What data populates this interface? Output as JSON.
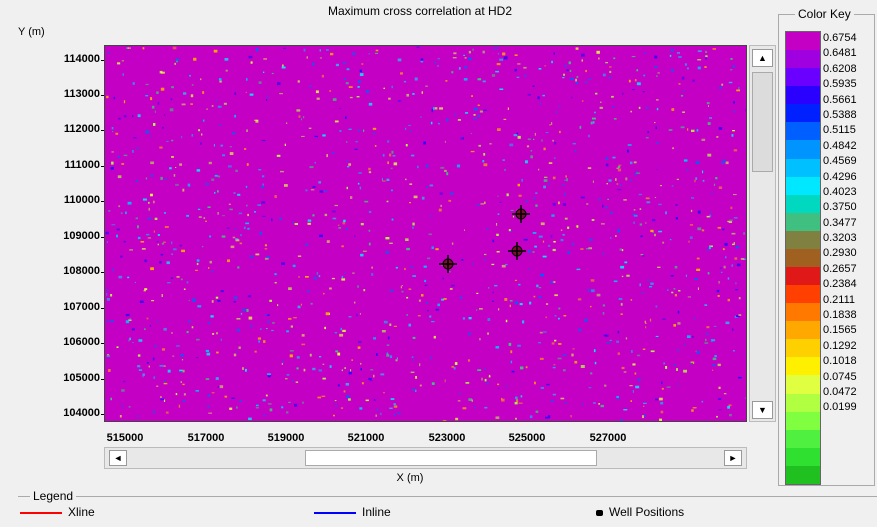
{
  "title": "Maximum cross correlation at HD2",
  "y_axis_label": "Y (m)",
  "x_axis_label": "X (m)",
  "y_ticks": [
    "114000",
    "113000",
    "112000",
    "111000",
    "110000",
    "109000",
    "108000",
    "107000",
    "106000",
    "105000",
    "104000"
  ],
  "x_ticks": [
    "515000",
    "517000",
    "519000",
    "521000",
    "523000",
    "525000",
    "527000"
  ],
  "color_key": {
    "title": "Color Key",
    "values": [
      "0.6754",
      "0.6481",
      "0.6208",
      "0.5935",
      "0.5661",
      "0.5388",
      "0.5115",
      "0.4842",
      "0.4569",
      "0.4296",
      "0.4023",
      "0.3750",
      "0.3477",
      "0.3203",
      "0.2930",
      "0.2657",
      "0.2384",
      "0.2111",
      "0.1838",
      "0.1565",
      "0.1292",
      "0.1018",
      "0.0745",
      "0.0472",
      "0.0199"
    ],
    "colors": [
      "#c400c4",
      "#a000e0",
      "#6a00ff",
      "#2a00ff",
      "#0020ff",
      "#0060ff",
      "#0094ff",
      "#00c0ff",
      "#00e8ff",
      "#00d8c0",
      "#40c080",
      "#808040",
      "#a06020",
      "#e01818",
      "#ff4000",
      "#ff7800",
      "#ffa800",
      "#ffd000",
      "#fff000",
      "#e0ff40",
      "#b0ff40",
      "#80ff40",
      "#50f040",
      "#30e030",
      "#20c020"
    ]
  },
  "legend": {
    "title": "Legend",
    "items": [
      {
        "label": "Xline",
        "color": "#ff0000"
      },
      {
        "label": "Inline",
        "color": "#0000ff"
      },
      {
        "label": "Well Positions",
        "color": "#000000"
      }
    ]
  },
  "scroll_arrows": {
    "up": "▲",
    "down": "▼",
    "left": "◄",
    "right": "►"
  }
}
